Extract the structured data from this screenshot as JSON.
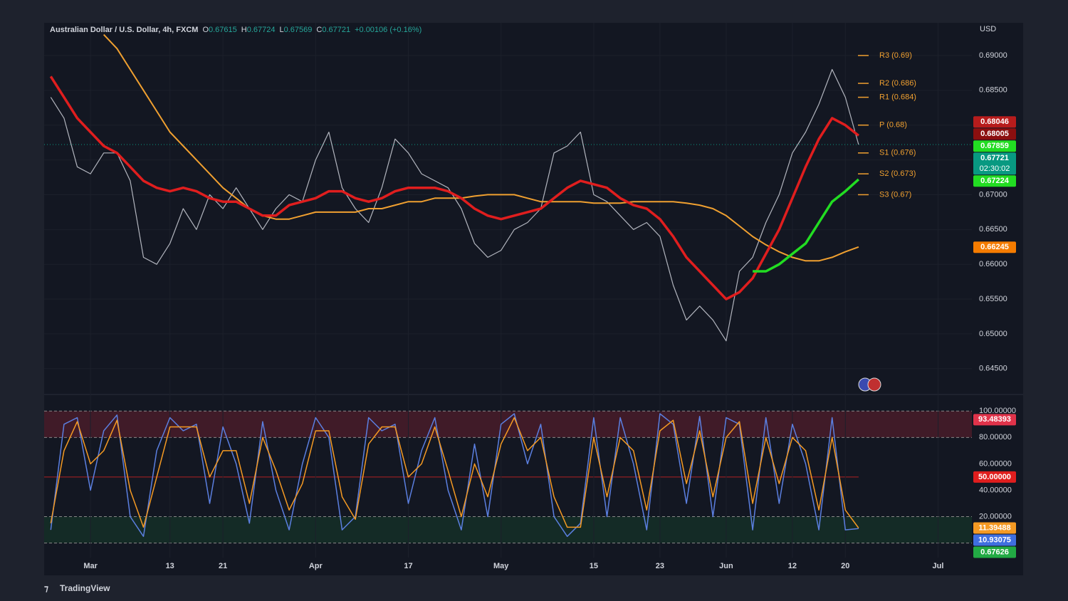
{
  "chart_data": [
    {
      "type": "line",
      "title": "Australian Dollar / U.S. Dollar, 4h, FXCM",
      "ohlc": [
        {
          "key": "O",
          "value": 0.67615
        },
        {
          "key": "H",
          "value": 0.67724
        },
        {
          "key": "L",
          "value": 0.67569
        },
        {
          "key": "C",
          "value": 0.67721
        }
      ],
      "change": "+0.00106 (+0.16%)",
      "currency": "USD",
      "categories": [
        null,
        null,
        null,
        "Mar",
        null,
        null,
        null,
        null,
        null,
        "13",
        null,
        null,
        null,
        "21",
        null,
        null,
        null,
        null,
        null,
        null,
        "Apr",
        null,
        null,
        null,
        null,
        null,
        null,
        "17",
        null,
        null,
        null,
        null,
        null,
        null,
        "May",
        null,
        null,
        null,
        null,
        null,
        null,
        "15",
        null,
        null,
        null,
        null,
        "23",
        null,
        null,
        null,
        null,
        "Jun",
        null,
        null,
        null,
        null,
        "12",
        null,
        null,
        null,
        "20",
        null,
        null,
        null,
        null,
        null,
        null,
        "Jul",
        null,
        null
      ],
      "series": [
        {
          "color": "#b2b5be",
          "width": 1.2,
          "values": [
            0.684,
            0.681,
            0.674,
            0.673,
            0.676,
            0.676,
            0.672,
            0.661,
            0.66,
            0.663,
            0.668,
            0.665,
            0.67,
            0.668,
            0.671,
            0.668,
            0.665,
            0.668,
            0.67,
            0.669,
            0.675,
            0.679,
            0.671,
            0.668,
            0.666,
            0.671,
            0.678,
            0.676,
            0.673,
            0.672,
            0.671,
            0.668,
            0.663,
            0.661,
            0.662,
            0.665,
            0.666,
            0.668,
            0.676,
            0.677,
            0.679,
            0.67,
            0.669,
            0.667,
            0.665,
            0.666,
            0.664,
            0.657,
            0.652,
            0.654,
            0.652,
            0.649,
            0.659,
            0.661,
            0.666,
            0.67,
            0.676,
            0.679,
            0.683,
            0.688,
            0.684,
            0.67721,
            null,
            null,
            null,
            null,
            null,
            null,
            null,
            null
          ]
        },
        {
          "color": "#f0a030",
          "width": 2,
          "values": [
            null,
            null,
            null,
            null,
            0.693,
            0.691,
            0.688,
            0.685,
            0.682,
            0.679,
            0.677,
            0.675,
            0.673,
            0.671,
            0.6695,
            0.668,
            0.667,
            0.6665,
            0.6665,
            0.667,
            0.6675,
            0.6675,
            0.6675,
            0.6675,
            0.668,
            0.668,
            0.6685,
            0.669,
            0.669,
            0.6695,
            0.6695,
            0.6695,
            0.6698,
            0.67,
            0.67,
            0.67,
            0.6695,
            0.669,
            0.669,
            0.669,
            0.669,
            0.6688,
            0.6688,
            0.6688,
            0.669,
            0.669,
            0.669,
            0.669,
            0.6688,
            0.6685,
            0.668,
            0.667,
            0.6655,
            0.664,
            0.6628,
            0.6618,
            0.661,
            0.6605,
            0.6605,
            0.661,
            0.6618,
            0.6625,
            null,
            null,
            null,
            null,
            null,
            null,
            null,
            null
          ]
        },
        {
          "color": "#e01e1e",
          "width": 3.5,
          "values": [
            0.687,
            0.684,
            0.681,
            0.679,
            0.677,
            0.676,
            0.674,
            0.672,
            0.671,
            0.6705,
            0.671,
            0.6705,
            0.6695,
            0.669,
            0.669,
            0.668,
            0.667,
            0.667,
            0.6685,
            0.669,
            0.6695,
            0.6705,
            0.6705,
            0.6695,
            0.669,
            0.6695,
            0.6705,
            0.671,
            0.671,
            0.671,
            0.6705,
            0.6695,
            0.668,
            0.667,
            0.6665,
            0.667,
            0.6675,
            0.668,
            0.6695,
            0.671,
            0.672,
            0.6715,
            0.671,
            0.6695,
            0.6685,
            0.668,
            0.6665,
            0.664,
            0.661,
            0.659,
            0.657,
            0.655,
            0.656,
            0.658,
            0.6615,
            0.665,
            0.6695,
            0.674,
            0.678,
            0.681,
            0.68,
            0.6785,
            null,
            null,
            null,
            null,
            null,
            null,
            null,
            null
          ]
        },
        {
          "color": "#22dd22",
          "width": 3.5,
          "values": [
            null,
            null,
            null,
            null,
            null,
            null,
            null,
            null,
            null,
            null,
            null,
            null,
            null,
            null,
            null,
            null,
            null,
            null,
            null,
            null,
            null,
            null,
            null,
            null,
            null,
            null,
            null,
            null,
            null,
            null,
            null,
            null,
            null,
            null,
            null,
            null,
            null,
            null,
            null,
            null,
            null,
            null,
            null,
            null,
            null,
            null,
            null,
            null,
            null,
            null,
            null,
            null,
            null,
            0.659,
            0.659,
            0.66,
            0.6615,
            0.663,
            0.666,
            0.669,
            0.6705,
            0.6722,
            null,
            null,
            null,
            null,
            null,
            null,
            null,
            null
          ]
        }
      ],
      "ylim": [
        0.6414,
        0.6947
      ],
      "yticks": [
        {
          "value": 0.645,
          "label": "0.64500"
        },
        {
          "value": 0.65,
          "label": "0.65000"
        },
        {
          "value": 0.655,
          "label": "0.65500"
        },
        {
          "value": 0.66,
          "label": "0.66000"
        },
        {
          "value": 0.665,
          "label": "0.66500"
        },
        {
          "value": 0.67,
          "label": "0.67000"
        },
        {
          "value": 0.675,
          "label": "0.67500"
        },
        {
          "value": 0.68,
          "label": "0.68000"
        },
        {
          "value": 0.685,
          "label": "0.68500"
        },
        {
          "value": 0.69,
          "label": "0.69000"
        }
      ],
      "pivots": [
        {
          "value": 0.69,
          "label": "R3 (0.69)"
        },
        {
          "value": 0.686,
          "label": "R2 (0.686)"
        },
        {
          "value": 0.684,
          "label": "R1 (0.684)"
        },
        {
          "value": 0.68,
          "label": "P (0.68)"
        },
        {
          "value": 0.676,
          "label": "S1 (0.676)"
        },
        {
          "value": 0.673,
          "label": "S2 (0.673)"
        },
        {
          "value": 0.67,
          "label": "S3 (0.67)"
        }
      ],
      "pivot_color": "#f0a030",
      "last_price": 0.67721,
      "countdown": "02:30:02",
      "tags": [
        {
          "value": 0.68046,
          "color": "#b71c1c"
        },
        {
          "value": 0.68005,
          "color": "#8b0f0f"
        },
        {
          "value": 0.67859,
          "color": "#22dd22"
        },
        {
          "value": 0.67721,
          "color": "#089981"
        },
        {
          "value": 0.67224,
          "color": "#22dd22"
        },
        {
          "value": 0.66245,
          "color": "#f57c00"
        }
      ],
      "grid": true,
      "brand": "TradingView"
    },
    {
      "type": "line",
      "series": [
        {
          "color": "#5b7fe0",
          "width": 1.5,
          "values": [
            10,
            90,
            95,
            40,
            85,
            97,
            20,
            5,
            70,
            95,
            85,
            90,
            30,
            88,
            60,
            15,
            92,
            40,
            10,
            60,
            95,
            80,
            10,
            20,
            95,
            85,
            90,
            30,
            70,
            95,
            40,
            10,
            75,
            20,
            90,
            98,
            60,
            90,
            20,
            5,
            15,
            95,
            20,
            95,
            60,
            10,
            98,
            90,
            30,
            96,
            20,
            95,
            90,
            10,
            95,
            30,
            90,
            60,
            10,
            95,
            10,
            10.93075,
            null,
            null,
            null,
            null,
            null,
            null,
            null,
            null
          ]
        },
        {
          "color": "#f59a23",
          "width": 1.5,
          "values": [
            15,
            70,
            92,
            60,
            70,
            93,
            40,
            12,
            50,
            88,
            88,
            88,
            50,
            70,
            70,
            30,
            80,
            55,
            25,
            45,
            85,
            85,
            35,
            18,
            75,
            88,
            88,
            50,
            60,
            88,
            55,
            20,
            60,
            35,
            75,
            95,
            70,
            80,
            35,
            12,
            12,
            80,
            35,
            80,
            70,
            25,
            85,
            93,
            45,
            85,
            35,
            80,
            92,
            30,
            80,
            45,
            80,
            70,
            25,
            80,
            25,
            11.39488,
            null,
            null,
            null,
            null,
            null,
            null,
            null,
            null
          ]
        }
      ],
      "ylim": [
        -11,
        112
      ],
      "yticks": [
        {
          "value": 20,
          "label": "20.00000"
        },
        {
          "value": 40,
          "label": "40.00000"
        },
        {
          "value": 60,
          "label": "60.00000"
        },
        {
          "value": 80,
          "label": "80.00000"
        },
        {
          "value": 100,
          "label": "100.00000"
        }
      ],
      "zones": [
        {
          "from": 80,
          "to": 100,
          "color": "rgba(200,40,60,0.25)"
        },
        {
          "from": 0,
          "to": 20,
          "color": "rgba(30,140,60,0.18)"
        }
      ],
      "dashed": [
        100,
        80,
        20,
        0
      ],
      "midline": {
        "value": 50,
        "color": "#b22222"
      },
      "tags": [
        {
          "value": 93.48393,
          "color": "#e0334a"
        },
        {
          "value": 50,
          "label": "50.00000",
          "color": "#e01e1e"
        },
        {
          "value": 11.39488,
          "color": "#f59a23"
        },
        {
          "value": 10.93075,
          "color": "#3f6fe0"
        },
        {
          "value": 0.67626,
          "color": "#22aa44"
        }
      ]
    }
  ]
}
